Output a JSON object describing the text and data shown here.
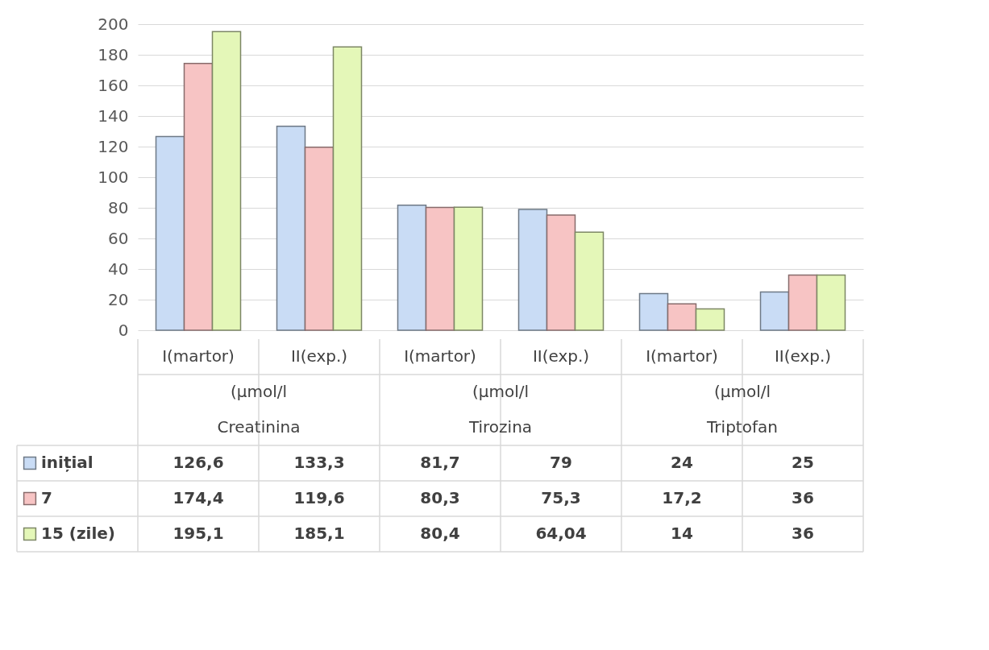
{
  "chart_data": {
    "type": "bar",
    "categories": [
      "I(martor)",
      "II(exp.)",
      "I(martor)",
      "II(exp.)",
      "I(martor)",
      "II(exp.)"
    ],
    "annotations": [
      "(µmol/l",
      "Creatinina",
      "(µmol/l",
      "Tirozina",
      "(µmol/l",
      "Triptofan"
    ],
    "series": [
      {
        "name": "inițial",
        "color": "#c9dcf5",
        "values": [
          126.6,
          133.3,
          81.7,
          79,
          24,
          25
        ],
        "value_labels": [
          "126,6",
          "133,3",
          "81,7",
          "79",
          "24",
          "25"
        ]
      },
      {
        "name": "7",
        "color": "#f7c4c4",
        "values": [
          174.4,
          119.6,
          80.3,
          75.3,
          17.2,
          36
        ],
        "value_labels": [
          "174,4",
          "119,6",
          "80,3",
          "75,3",
          "17,2",
          "36"
        ]
      },
      {
        "name": "15 (zile)",
        "color": "#e4f7b8",
        "values": [
          195.1,
          185.1,
          80.4,
          64.04,
          14,
          36
        ],
        "value_labels": [
          "195,1",
          "185,1",
          "80,4",
          "64,04",
          "14",
          "36"
        ]
      }
    ],
    "ylim": [
      0,
      200
    ],
    "yticks": [
      0,
      20,
      40,
      60,
      80,
      100,
      120,
      140,
      160,
      180,
      200
    ],
    "grid": "y",
    "legend": "bottom left"
  }
}
